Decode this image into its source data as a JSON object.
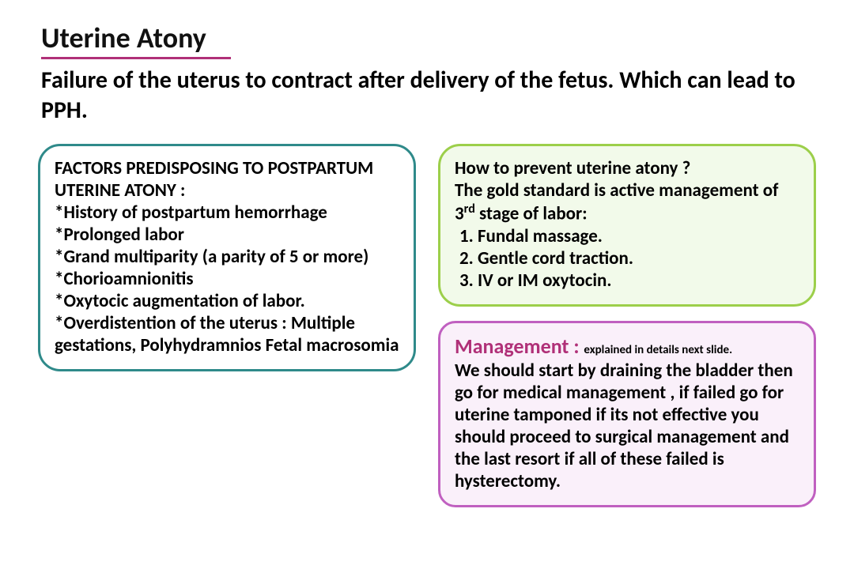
{
  "colors": {
    "title_underline": "#b03078",
    "left_border": "#2f8a8a",
    "right_top_border": "#9ccf4a",
    "right_top_bg": "#f2faea",
    "right_bot_border": "#c060c0",
    "right_bot_bg": "#faf0fa",
    "mgmt_lead": "#b03078"
  },
  "title": "Uterine Atony",
  "subtitle": "Failure of the uterus to contract after delivery of the fetus. Which can lead to PPH.",
  "left": {
    "heading": "FACTORS PREDISPOSING TO POSTPARTUM UTERINE ATONY :",
    "items": [
      "*History of postpartum hemorrhage",
      "*Prolonged labor",
      " *Grand multiparity (a parity of 5 or more)",
      " *Chorioamnionitis",
      "*Oxytocic augmentation of labor.",
      "*Overdistention of the uterus : Multiple gestations, Polyhydramnios Fetal macrosomia"
    ]
  },
  "right_top": {
    "heading": "How to prevent uterine atony ?",
    "intro_a": "The gold standard is active management of 3",
    "intro_sup": "rd",
    "intro_b": " stage of labor:",
    "steps": [
      "1.   Fundal massage.",
      "2.    Gentle cord traction.",
      "3.    IV or IM oxytocin."
    ]
  },
  "right_bot": {
    "lead": "Management : ",
    "note": "explained in details next slide.",
    "body": "We should start by draining the bladder then go for medical management , if failed go for uterine tamponed if its not effective you should proceed to surgical management and the last resort if all of these failed is hysterectomy."
  }
}
